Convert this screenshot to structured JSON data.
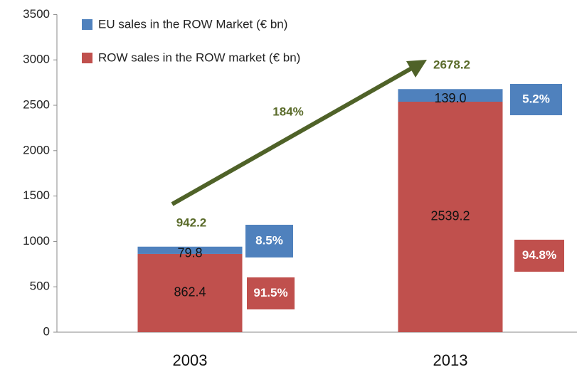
{
  "chart_data": {
    "type": "stacked_bar",
    "categories": [
      "2003",
      "2013"
    ],
    "series": [
      {
        "name": "ROW sales in the ROW market  (€ bn)",
        "color": "#c0504d",
        "values": [
          862.4,
          2539.2
        ],
        "share_labels": [
          "91.5%",
          "94.8%"
        ]
      },
      {
        "name": "EU sales in the ROW Market  (€ bn)",
        "color": "#4f81bd",
        "values": [
          79.8,
          139.0
        ],
        "value_labels": [
          "79.8",
          "139.0"
        ],
        "share_labels": [
          "8.5%",
          "5.2%"
        ]
      }
    ],
    "totals": [
      942.2,
      2678.2
    ],
    "growth_label": "184%",
    "arrow_color": "#4f6228",
    "ylim": [
      0,
      3500
    ],
    "yticks": [
      0,
      500,
      1000,
      1500,
      2000,
      2500,
      3000,
      3500
    ]
  }
}
